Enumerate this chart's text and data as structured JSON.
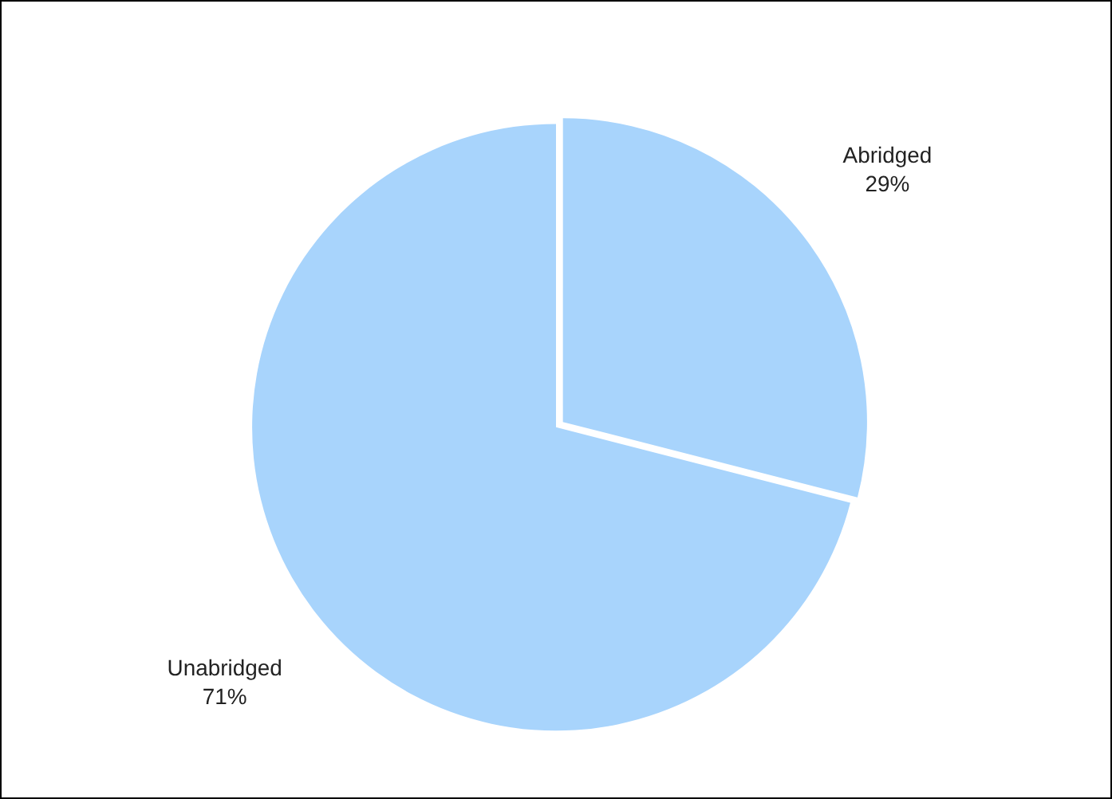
{
  "chart_data": {
    "type": "pie",
    "categories": [
      "Abridged",
      "Unabridged"
    ],
    "values": [
      29,
      71
    ],
    "colors": [
      "#a8d4fc",
      "#a8d4fc"
    ],
    "value_labels": [
      "29%",
      "71%"
    ],
    "legend": false
  }
}
